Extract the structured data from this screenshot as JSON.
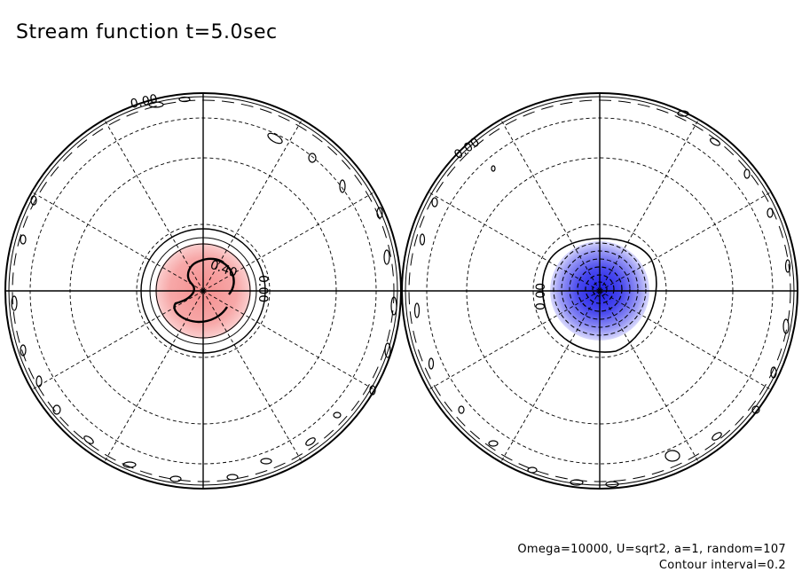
{
  "title": "Stream function t=5.0sec",
  "left_panel": {
    "labels": [
      "0.00",
      "0.40",
      "0.00"
    ],
    "fill_color": "#f5a3a3"
  },
  "right_panel": {
    "labels": [
      "0.00",
      "0.00"
    ],
    "fill_color": "#3b3bea"
  },
  "caption": {
    "parameters": "Omega=10000, U=sqrt2, a=1, random=107",
    "contour_interval": "Contour interval=0.2"
  }
}
